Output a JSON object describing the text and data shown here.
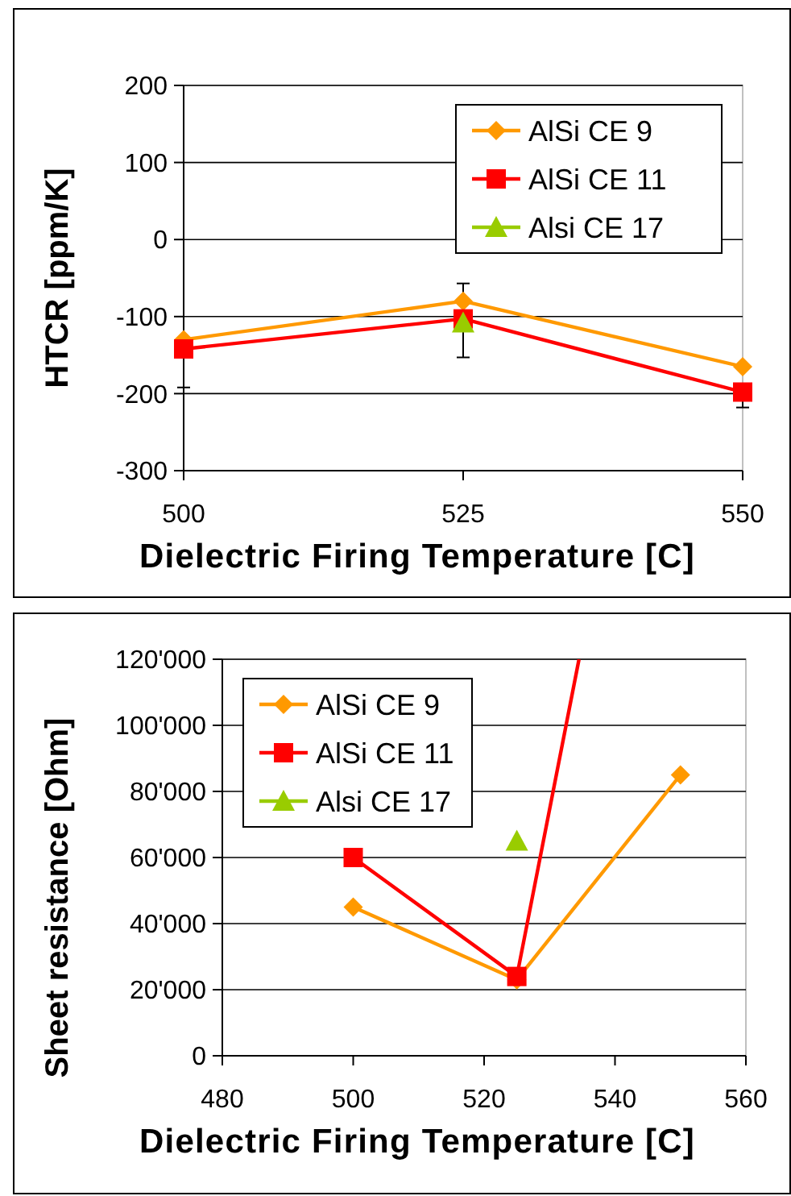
{
  "chart_data": [
    {
      "type": "line",
      "xlabel": "Dielectric Firing Temperature [C]",
      "ylabel": "HTCR [ppm/K]",
      "x": [
        500,
        525,
        550
      ],
      "xlim": [
        500,
        550
      ],
      "xticks": [
        500,
        525,
        550
      ],
      "ylim": [
        -300,
        200
      ],
      "yticks": [
        -300,
        -200,
        -100,
        0,
        100,
        200
      ],
      "grid": "y",
      "legend": "top right",
      "series": [
        {
          "name": "AlSi CE 9",
          "color": "#ff9900",
          "marker": "diamond",
          "values": [
            -130,
            -80,
            -165
          ]
        },
        {
          "name": "AlSi CE 11",
          "color": "#ff0000",
          "marker": "square",
          "values": [
            -142,
            -103,
            -198
          ],
          "errors": [
            [
              -192,
              -142
            ],
            null,
            [
              -218,
              -198
            ]
          ]
        },
        {
          "name": "Alsi CE 17",
          "color": "#99cc00",
          "marker": "triangle",
          "x": [
            525
          ],
          "values": [
            -108
          ],
          "errors": [
            [
              -153,
              -57
            ]
          ]
        }
      ]
    },
    {
      "type": "line",
      "xlabel": "Dielectric Firing Temperature [C]",
      "ylabel": "Sheet resistance [Ohm]",
      "x": [
        500,
        525,
        550
      ],
      "xlim": [
        480,
        560
      ],
      "xticks": [
        480,
        500,
        520,
        540,
        560
      ],
      "ylim": [
        0,
        120000
      ],
      "yticks": [
        {
          "value": 0,
          "label": "0"
        },
        {
          "value": 20000,
          "label": "20'000"
        },
        {
          "value": 40000,
          "label": "40'000"
        },
        {
          "value": 60000,
          "label": "60'000"
        },
        {
          "value": 80000,
          "label": "80'000"
        },
        {
          "value": 100000,
          "label": "100'000"
        },
        {
          "value": 120000,
          "label": "120'000"
        }
      ],
      "grid": "y",
      "legend": "top left",
      "series": [
        {
          "name": "AlSi CE 9",
          "color": "#ff9900",
          "marker": "diamond",
          "values": [
            45000,
            23000,
            85000
          ]
        },
        {
          "name": "AlSi CE 11",
          "color": "#ff0000",
          "marker": "square",
          "x": [
            500,
            525,
            534.5
          ],
          "values": [
            60000,
            24000,
            120000
          ]
        },
        {
          "name": "Alsi CE 17",
          "color": "#99cc00",
          "marker": "triangle",
          "type": "scatter",
          "x": [
            525
          ],
          "values": [
            65000
          ]
        }
      ]
    }
  ]
}
